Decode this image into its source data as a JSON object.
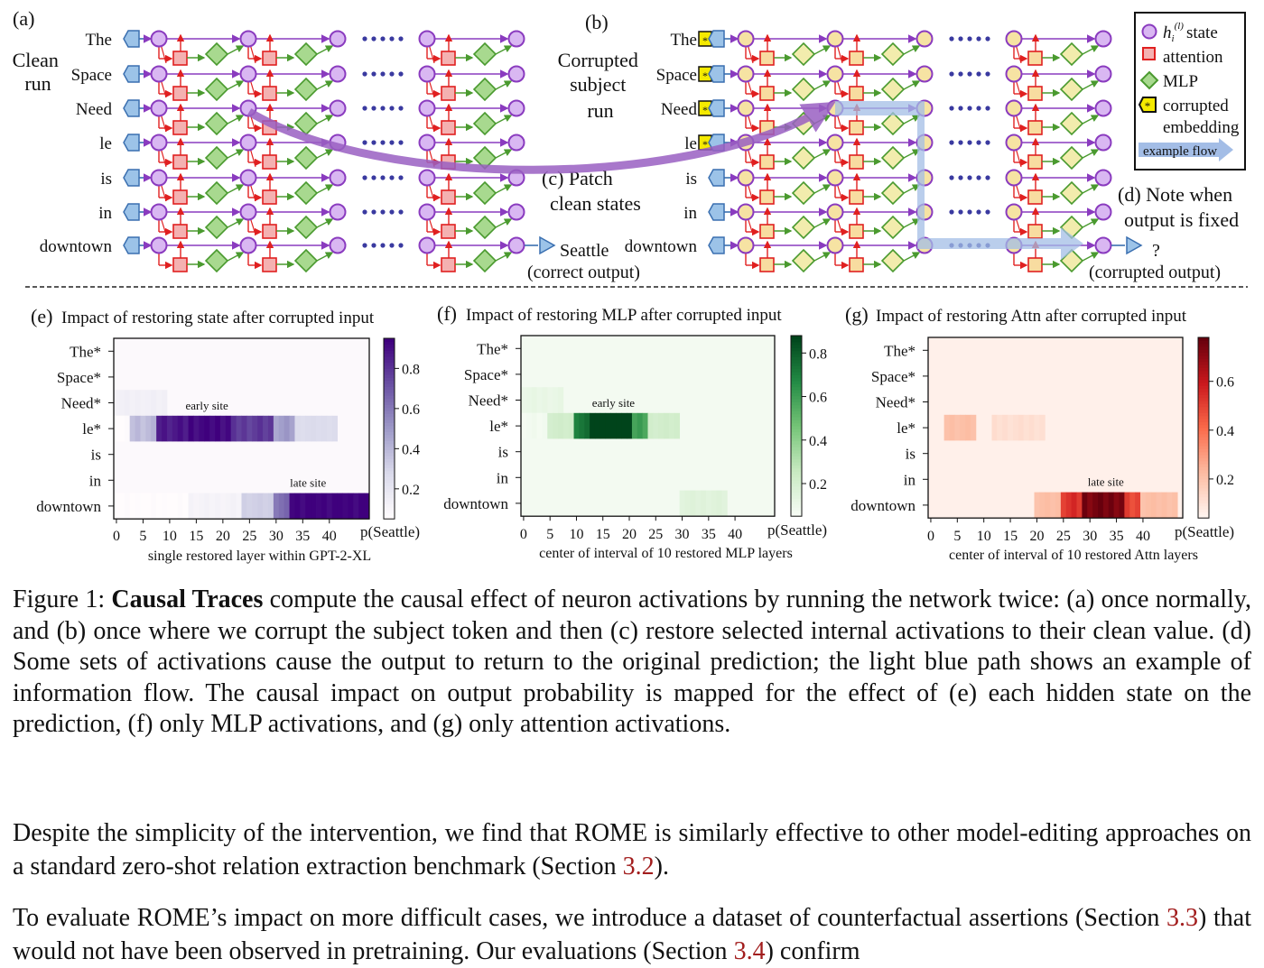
{
  "diagram": {
    "panel_a": {
      "tag": "(a)",
      "label_lines": [
        "Clean",
        "run"
      ]
    },
    "panel_b": {
      "tag": "(b)",
      "label_lines": [
        "Corrupted",
        "subject",
        "run"
      ]
    },
    "panel_c": {
      "label_lines": [
        "(c) Patch",
        "clean states"
      ]
    },
    "panel_d": {
      "label_lines": [
        "(d) Note when",
        "output is fixed"
      ]
    },
    "clean_tokens": [
      "The",
      "Space",
      "Need",
      "le",
      "is",
      "in",
      "downtown"
    ],
    "corrupt_tokens": [
      "The*",
      "Space*",
      "Need*",
      "le*",
      "is",
      "in",
      "downtown"
    ],
    "clean_output": "Seattle",
    "clean_output_note": "(correct output)",
    "corrupt_output": "?",
    "corrupt_output_note": "(corrupted output)",
    "legend": {
      "state_prefix": "h",
      "state_sub": "i",
      "state_sup": "(l)",
      "state": "state",
      "attention": "attention",
      "mlp": "MLP",
      "corrupted_1": "corrupted",
      "corrupted_2": "embedding",
      "example_flow": "example flow",
      "star": "*"
    },
    "colors": {
      "state_clean": "#d9b7f2",
      "state_edge": "#8a3bbf",
      "attn_clean": "#f4b1b1",
      "attn_edge": "#e02020",
      "mlp_clean": "#a8d98f",
      "mlp_edge": "#4a9a2f",
      "state_corrupt": "#f6e3a3",
      "attn_corrupt": "#f8dca0",
      "mlp_corrupt": "#f2ecad",
      "token": "#9cc3e8",
      "flow": "#a3bde6",
      "patch_arrow": "#9a60c2",
      "star_fill": "#f5ea00"
    }
  },
  "chart_data": [
    {
      "type": "heatmap",
      "panel": "(e)",
      "title": "Impact of restoring state after corrupted input",
      "xlabel": "single restored layer within GPT-2-XL",
      "rows": [
        "The*",
        "Space*",
        "Need*",
        "le*",
        "is",
        "in",
        "downtown"
      ],
      "x_ticks": [
        0,
        5,
        10,
        15,
        20,
        25,
        30,
        35,
        40
      ],
      "x_range": [
        0,
        47
      ],
      "colorbar_label": "p(Seattle)",
      "colorbar_ticks": [
        0.2,
        0.4,
        0.6,
        0.8
      ],
      "colorbar_range": [
        0.05,
        0.95
      ],
      "colormap": "purples",
      "annotations": [
        {
          "text": "early site",
          "row": "le*",
          "layer": 17
        },
        {
          "text": "late site",
          "row": "downtown",
          "layer": 36
        }
      ],
      "values_summary": {
        "Need*": [
          [
            0,
            10,
            0.12
          ]
        ],
        "le*": [
          [
            0,
            3,
            0.04
          ],
          [
            3,
            8,
            0.35
          ],
          [
            8,
            14,
            0.85
          ],
          [
            14,
            22,
            0.9
          ],
          [
            22,
            30,
            0.75
          ],
          [
            30,
            34,
            0.45
          ],
          [
            34,
            42,
            0.25
          ]
        ],
        "downtown": [
          [
            0,
            14,
            0.04
          ],
          [
            14,
            24,
            0.1
          ],
          [
            24,
            30,
            0.3
          ],
          [
            30,
            33,
            0.6
          ],
          [
            33,
            48,
            0.92
          ]
        ]
      }
    },
    {
      "type": "heatmap",
      "panel": "(f)",
      "title": "Impact of restoring MLP after corrupted input",
      "xlabel": "center of interval of 10 restored MLP layers",
      "rows": [
        "The*",
        "Space*",
        "Need*",
        "le*",
        "is",
        "in",
        "downtown"
      ],
      "x_ticks": [
        0,
        5,
        10,
        15,
        20,
        25,
        30,
        35,
        40
      ],
      "x_range": [
        0,
        47
      ],
      "colorbar_label": "p(Seattle)",
      "colorbar_ticks": [
        0.2,
        0.4,
        0.6,
        0.8
      ],
      "colorbar_range": [
        0.05,
        0.88
      ],
      "colormap": "greens",
      "annotations": [
        {
          "text": "early site",
          "row": "le*",
          "layer": 17
        }
      ],
      "values_summary": {
        "Need*": [
          [
            0,
            8,
            0.1
          ]
        ],
        "le*": [
          [
            0,
            5,
            0.06
          ],
          [
            5,
            10,
            0.2
          ],
          [
            10,
            13,
            0.7
          ],
          [
            13,
            21,
            0.88
          ],
          [
            21,
            24,
            0.55
          ],
          [
            24,
            30,
            0.2
          ]
        ],
        "downtown": [
          [
            30,
            39,
            0.14
          ]
        ]
      }
    },
    {
      "type": "heatmap",
      "panel": "(g)",
      "title": "Impact of restoring Attn after corrupted input",
      "xlabel": "center of interval of 10 restored Attn layers",
      "rows": [
        "The*",
        "Space*",
        "Need*",
        "le*",
        "is",
        "in",
        "downtown"
      ],
      "x_ticks": [
        0,
        5,
        10,
        15,
        20,
        25,
        30,
        35,
        40
      ],
      "x_range": [
        0,
        47
      ],
      "colorbar_label": "p(Seattle)",
      "colorbar_ticks": [
        0.2,
        0.4,
        0.6
      ],
      "colorbar_range": [
        0.04,
        0.78
      ],
      "colormap": "reds",
      "annotations": [
        {
          "text": "late site",
          "row": "downtown",
          "layer": 33
        }
      ],
      "values_summary": {
        "le*": [
          [
            3,
            9,
            0.2
          ],
          [
            12,
            22,
            0.1
          ]
        ],
        "downtown": [
          [
            20,
            25,
            0.2
          ],
          [
            25,
            29,
            0.5
          ],
          [
            29,
            37,
            0.72
          ],
          [
            37,
            40,
            0.45
          ],
          [
            40,
            47,
            0.2
          ]
        ]
      }
    }
  ],
  "caption": {
    "prefix": "Figure 1: ",
    "bold": "Causal Traces",
    "text": " compute the causal effect of neuron activations by running the network twice: (a) once normally, and (b) once where we corrupt the subject token and then (c) restore selected internal activations to their clean value. (d) Some sets of activations cause the output to return to the original prediction; the light blue path shows an example of information flow. The causal impact on output probability is mapped for the effect of (e) each hidden state on the prediction, (f) only MLP activations, and (g) only attention activations."
  },
  "para1": {
    "before": "Despite the simplicity of the intervention, we find that ROME is similarly effective to other model-editing approaches on a standard zero-shot relation extraction benchmark (Section ",
    "ref": "3.2",
    "after": ")."
  },
  "para2": {
    "before": "To evaluate ROME’s impact on more difficult cases, we introduce a dataset of counterfactual assertions (Section ",
    "ref1": "3.3",
    "mid": ") that would not have been observed in pretraining. Our evaluations (Section ",
    "ref2": "3.4",
    "after": ") confirm"
  }
}
